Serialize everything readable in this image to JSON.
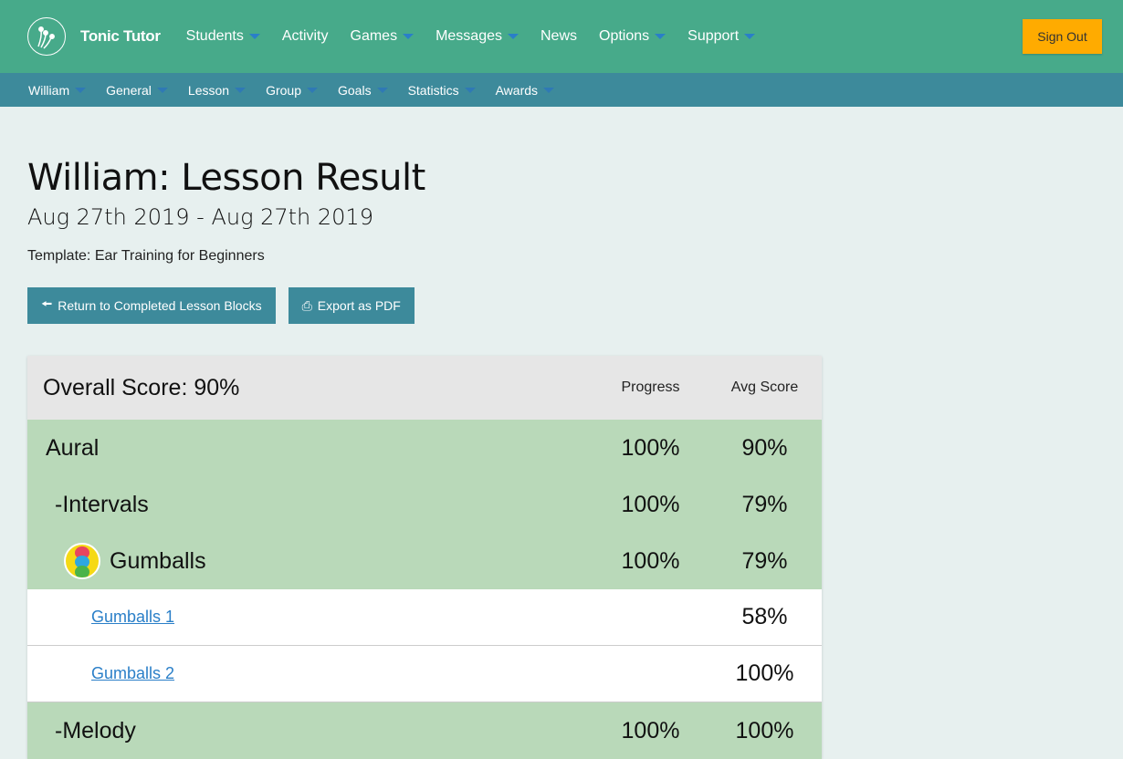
{
  "header": {
    "brand": "Tonic Tutor",
    "nav": [
      {
        "label": "Students",
        "dropdown": true
      },
      {
        "label": "Activity",
        "dropdown": false
      },
      {
        "label": "Games",
        "dropdown": true
      },
      {
        "label": "Messages",
        "dropdown": true
      },
      {
        "label": "News",
        "dropdown": false
      },
      {
        "label": "Options",
        "dropdown": true
      },
      {
        "label": "Support",
        "dropdown": true
      }
    ],
    "sign_out": "Sign Out"
  },
  "subnav": [
    "William",
    "General",
    "Lesson",
    "Group",
    "Goals",
    "Statistics",
    "Awards"
  ],
  "page": {
    "title": "William: Lesson Result",
    "dates": "Aug 27th 2019 - Aug 27th 2019",
    "template": "Template: Ear Training for Beginners",
    "return_button": "Return to Completed Lesson Blocks",
    "export_button": "Export as PDF"
  },
  "table": {
    "overall": "Overall Score: 90%",
    "col_progress": "Progress",
    "col_avg": "Avg Score",
    "rows": [
      {
        "name": "Aural",
        "progress": "100%",
        "avg": "90%"
      },
      {
        "name": "-Intervals",
        "progress": "100%",
        "avg": "79%"
      },
      {
        "name": "Gumballs",
        "progress": "100%",
        "avg": "79%"
      },
      {
        "name": "Gumballs 1",
        "progress": "",
        "avg": "58%"
      },
      {
        "name": "Gumballs 2",
        "progress": "",
        "avg": "100%"
      },
      {
        "name": "-Melody",
        "progress": "100%",
        "avg": "100%"
      }
    ]
  },
  "colors": {
    "header": "#47aa8a",
    "subnav": "#3d8a9b",
    "sign_out": "#ffab00",
    "row_group": "#b9d9b9",
    "link": "#2a7fc8"
  }
}
